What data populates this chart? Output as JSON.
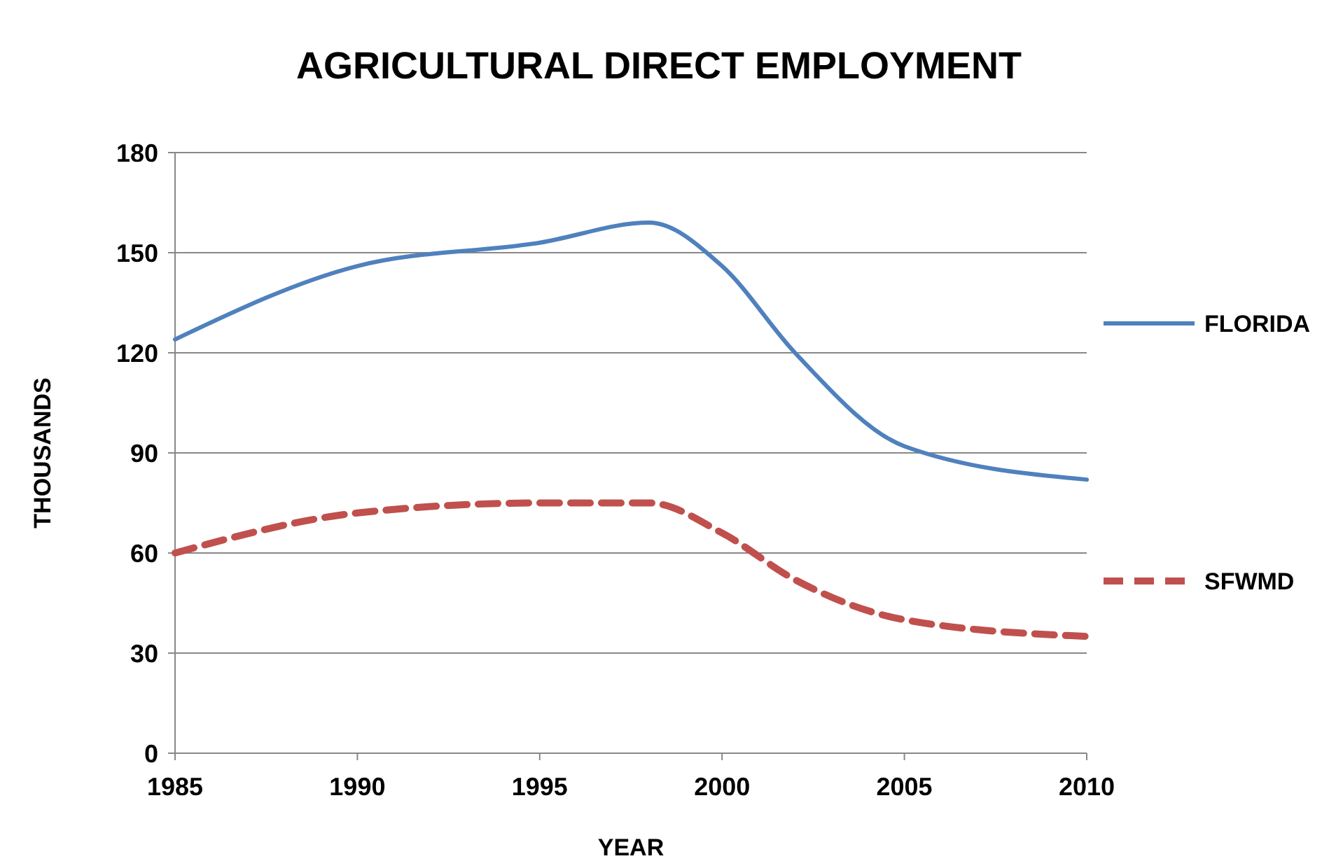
{
  "chart_data": {
    "type": "line",
    "title": "AGRICULTURAL DIRECT EMPLOYMENT",
    "xlabel": "YEAR",
    "ylabel": "THOUSANDS",
    "x": [
      1985,
      1990,
      1995,
      1998,
      2000,
      2002,
      2005,
      2010
    ],
    "series": [
      {
        "name": "FLORIDA",
        "color": "#4f81bd",
        "values": [
          124,
          146,
          153,
          159,
          146,
          120,
          92,
          82
        ],
        "line_style": "solid"
      },
      {
        "name": "SFWMD",
        "color": "#c0504d",
        "values": [
          60,
          72,
          75,
          75,
          66,
          52,
          40,
          35
        ],
        "line_style": "dashed"
      }
    ],
    "xlim": [
      1985,
      2010
    ],
    "xticks": [
      1985,
      1990,
      1995,
      2000,
      2005,
      2010
    ],
    "ylim": [
      0,
      180
    ],
    "yticks": [
      0,
      30,
      60,
      90,
      120,
      150,
      180
    ],
    "grid": "y",
    "legend": "right"
  }
}
